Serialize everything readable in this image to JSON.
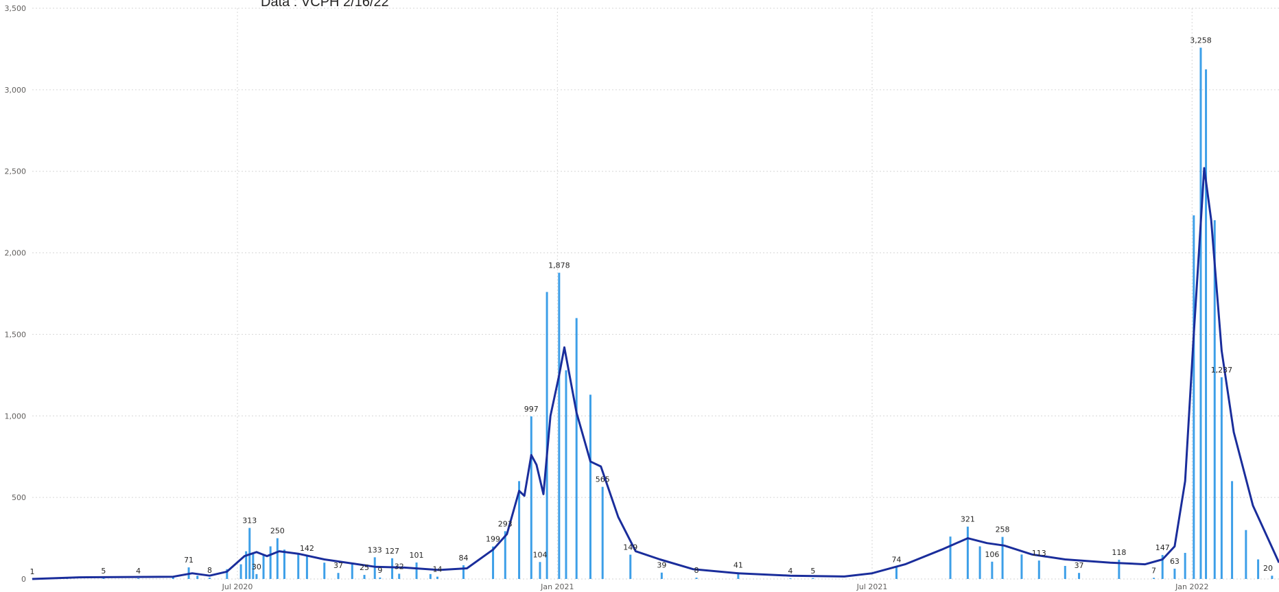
{
  "subtitle": "Data : VCPH 2/16/22",
  "colors": {
    "bars": "#3d9fe8",
    "line": "#1a2d9b",
    "grid": "#d6d6d6",
    "text": "#605e5c"
  },
  "chart_data": {
    "type": "bar",
    "title": "",
    "subtitle": "Data : VCPH 2/16/22",
    "xlabel": "",
    "ylabel": "",
    "ylim": [
      0,
      3500
    ],
    "grid": true,
    "legend": "none",
    "y_ticks": [
      0,
      500,
      1000,
      1500,
      2000,
      2500,
      3000,
      3500
    ],
    "y_tick_labels": [
      "0",
      "500",
      "1,000",
      "1,500",
      "2,000",
      "2,500",
      "3,000",
      "3,500"
    ],
    "x_range": [
      "2020-03-05",
      "2022-02-20"
    ],
    "x_ticks": [
      {
        "date": "2020-07-01",
        "label": "Jul 2020"
      },
      {
        "date": "2021-01-01",
        "label": "Jan 2021"
      },
      {
        "date": "2021-07-01",
        "label": "Jul 2021"
      },
      {
        "date": "2022-01-01",
        "label": "Jan 2022"
      }
    ],
    "series": [
      {
        "kind": "bar",
        "points": [
          [
            "2020-03-05",
            1
          ],
          [
            "2020-03-25",
            3
          ],
          [
            "2020-04-15",
            5
          ],
          [
            "2020-05-05",
            4
          ],
          [
            "2020-05-25",
            10
          ],
          [
            "2020-06-03",
            71
          ],
          [
            "2020-06-08",
            20
          ],
          [
            "2020-06-15",
            8
          ],
          [
            "2020-06-25",
            60
          ],
          [
            "2020-07-03",
            90
          ],
          [
            "2020-07-06",
            170
          ],
          [
            "2020-07-08",
            313
          ],
          [
            "2020-07-10",
            160
          ],
          [
            "2020-07-12",
            30
          ],
          [
            "2020-07-16",
            150
          ],
          [
            "2020-07-20",
            200
          ],
          [
            "2020-07-24",
            250
          ],
          [
            "2020-07-28",
            180
          ],
          [
            "2020-08-05",
            150
          ],
          [
            "2020-08-10",
            142
          ],
          [
            "2020-08-20",
            100
          ],
          [
            "2020-08-28",
            37
          ],
          [
            "2020-09-05",
            90
          ],
          [
            "2020-09-12",
            25
          ],
          [
            "2020-09-18",
            133
          ],
          [
            "2020-09-21",
            9
          ],
          [
            "2020-09-28",
            127
          ],
          [
            "2020-10-02",
            32
          ],
          [
            "2020-10-12",
            101
          ],
          [
            "2020-10-20",
            30
          ],
          [
            "2020-10-24",
            14
          ],
          [
            "2020-11-08",
            84
          ],
          [
            "2020-11-25",
            199
          ],
          [
            "2020-12-02",
            293
          ],
          [
            "2020-12-10",
            600
          ],
          [
            "2020-12-17",
            997
          ],
          [
            "2020-12-22",
            104
          ],
          [
            "2020-12-26",
            1760
          ],
          [
            "2021-01-02",
            1878
          ],
          [
            "2021-01-06",
            1280
          ],
          [
            "2021-01-12",
            1600
          ],
          [
            "2021-01-20",
            1130
          ],
          [
            "2021-01-27",
            565
          ],
          [
            "2021-02-12",
            149
          ],
          [
            "2021-03-02",
            39
          ],
          [
            "2021-03-22",
            8
          ],
          [
            "2021-04-15",
            41
          ],
          [
            "2021-05-15",
            4
          ],
          [
            "2021-05-28",
            5
          ],
          [
            "2021-07-15",
            74
          ],
          [
            "2021-08-15",
            260
          ],
          [
            "2021-08-25",
            321
          ],
          [
            "2021-09-01",
            200
          ],
          [
            "2021-09-08",
            106
          ],
          [
            "2021-09-14",
            258
          ],
          [
            "2021-09-25",
            150
          ],
          [
            "2021-10-05",
            113
          ],
          [
            "2021-10-20",
            80
          ],
          [
            "2021-10-28",
            37
          ],
          [
            "2021-11-20",
            118
          ],
          [
            "2021-12-10",
            7
          ],
          [
            "2021-12-15",
            147
          ],
          [
            "2021-12-22",
            63
          ],
          [
            "2021-12-28",
            160
          ],
          [
            "2022-01-02",
            2230
          ],
          [
            "2022-01-06",
            3258
          ],
          [
            "2022-01-09",
            3125
          ],
          [
            "2022-01-14",
            2200
          ],
          [
            "2022-01-18",
            1237
          ],
          [
            "2022-01-24",
            600
          ],
          [
            "2022-02-01",
            300
          ],
          [
            "2022-02-08",
            120
          ],
          [
            "2022-02-16",
            20
          ]
        ]
      },
      {
        "kind": "line",
        "points": [
          [
            "2020-03-05",
            0
          ],
          [
            "2020-04-01",
            10
          ],
          [
            "2020-05-01",
            12
          ],
          [
            "2020-05-25",
            14
          ],
          [
            "2020-06-05",
            35
          ],
          [
            "2020-06-15",
            20
          ],
          [
            "2020-06-25",
            45
          ],
          [
            "2020-07-05",
            140
          ],
          [
            "2020-07-12",
            165
          ],
          [
            "2020-07-18",
            140
          ],
          [
            "2020-07-25",
            170
          ],
          [
            "2020-08-05",
            155
          ],
          [
            "2020-08-20",
            120
          ],
          [
            "2020-09-05",
            95
          ],
          [
            "2020-09-18",
            75
          ],
          [
            "2020-10-05",
            70
          ],
          [
            "2020-10-25",
            55
          ],
          [
            "2020-11-10",
            65
          ],
          [
            "2020-11-25",
            180
          ],
          [
            "2020-12-03",
            275
          ],
          [
            "2020-12-10",
            540
          ],
          [
            "2020-12-13",
            510
          ],
          [
            "2020-12-17",
            760
          ],
          [
            "2020-12-20",
            700
          ],
          [
            "2020-12-24",
            520
          ],
          [
            "2020-12-28",
            1000
          ],
          [
            "2021-01-02",
            1250
          ],
          [
            "2021-01-05",
            1420
          ],
          [
            "2021-01-12",
            1020
          ],
          [
            "2021-01-20",
            720
          ],
          [
            "2021-01-26",
            690
          ],
          [
            "2021-02-05",
            380
          ],
          [
            "2021-02-15",
            170
          ],
          [
            "2021-03-01",
            120
          ],
          [
            "2021-03-20",
            60
          ],
          [
            "2021-04-15",
            35
          ],
          [
            "2021-05-15",
            20
          ],
          [
            "2021-06-15",
            15
          ],
          [
            "2021-07-01",
            35
          ],
          [
            "2021-07-20",
            90
          ],
          [
            "2021-08-10",
            180
          ],
          [
            "2021-08-25",
            250
          ],
          [
            "2021-09-05",
            220
          ],
          [
            "2021-09-15",
            205
          ],
          [
            "2021-10-01",
            150
          ],
          [
            "2021-10-20",
            120
          ],
          [
            "2021-11-15",
            100
          ],
          [
            "2021-12-05",
            90
          ],
          [
            "2021-12-15",
            120
          ],
          [
            "2021-12-22",
            200
          ],
          [
            "2021-12-28",
            600
          ],
          [
            "2022-01-02",
            1500
          ],
          [
            "2022-01-08",
            2520
          ],
          [
            "2022-01-12",
            2200
          ],
          [
            "2022-01-18",
            1400
          ],
          [
            "2022-01-25",
            900
          ],
          [
            "2022-02-05",
            450
          ],
          [
            "2022-02-20",
            100
          ]
        ]
      }
    ],
    "data_labels": [
      {
        "date": "2020-03-05",
        "value": 1,
        "text": "1"
      },
      {
        "date": "2020-04-15",
        "value": 5,
        "text": "5"
      },
      {
        "date": "2020-05-05",
        "value": 4,
        "text": "4"
      },
      {
        "date": "2020-06-03",
        "value": 71,
        "text": "71"
      },
      {
        "date": "2020-06-15",
        "value": 8,
        "text": "8"
      },
      {
        "date": "2020-07-08",
        "value": 313,
        "text": "313"
      },
      {
        "date": "2020-07-12",
        "value": 30,
        "text": "30"
      },
      {
        "date": "2020-07-24",
        "value": 250,
        "text": "250"
      },
      {
        "date": "2020-08-10",
        "value": 142,
        "text": "142"
      },
      {
        "date": "2020-08-28",
        "value": 37,
        "text": "37"
      },
      {
        "date": "2020-09-12",
        "value": 25,
        "text": "25"
      },
      {
        "date": "2020-09-18",
        "value": 133,
        "text": "133"
      },
      {
        "date": "2020-09-21",
        "value": 9,
        "text": "9"
      },
      {
        "date": "2020-09-28",
        "value": 127,
        "text": "127"
      },
      {
        "date": "2020-10-02",
        "value": 32,
        "text": "32"
      },
      {
        "date": "2020-10-12",
        "value": 101,
        "text": "101"
      },
      {
        "date": "2020-10-24",
        "value": 14,
        "text": "14"
      },
      {
        "date": "2020-11-08",
        "value": 84,
        "text": "84"
      },
      {
        "date": "2020-11-25",
        "value": 199,
        "text": "199"
      },
      {
        "date": "2020-12-02",
        "value": 293,
        "text": "293"
      },
      {
        "date": "2020-12-17",
        "value": 997,
        "text": "997"
      },
      {
        "date": "2020-12-22",
        "value": 104,
        "text": "104"
      },
      {
        "date": "2021-01-02",
        "value": 1878,
        "text": "1,878"
      },
      {
        "date": "2021-01-27",
        "value": 565,
        "text": "565"
      },
      {
        "date": "2021-02-12",
        "value": 149,
        "text": "149"
      },
      {
        "date": "2021-03-02",
        "value": 39,
        "text": "39"
      },
      {
        "date": "2021-03-22",
        "value": 8,
        "text": "8"
      },
      {
        "date": "2021-04-15",
        "value": 41,
        "text": "41"
      },
      {
        "date": "2021-05-15",
        "value": 4,
        "text": "4"
      },
      {
        "date": "2021-05-28",
        "value": 5,
        "text": "5"
      },
      {
        "date": "2021-07-15",
        "value": 74,
        "text": "74"
      },
      {
        "date": "2021-08-25",
        "value": 321,
        "text": "321"
      },
      {
        "date": "2021-09-08",
        "value": 106,
        "text": "106"
      },
      {
        "date": "2021-09-14",
        "value": 258,
        "text": "258"
      },
      {
        "date": "2021-10-05",
        "value": 113,
        "text": "113"
      },
      {
        "date": "2021-10-28",
        "value": 37,
        "text": "37"
      },
      {
        "date": "2021-11-20",
        "value": 118,
        "text": "118"
      },
      {
        "date": "2021-12-10",
        "value": 7,
        "text": "7"
      },
      {
        "date": "2021-12-15",
        "value": 147,
        "text": "147"
      },
      {
        "date": "2021-12-22",
        "value": 63,
        "text": "63"
      },
      {
        "date": "2022-01-06",
        "value": 3258,
        "text": "3,258"
      },
      {
        "date": "2022-01-18",
        "value": 1237,
        "text": "1,237"
      },
      {
        "date": "2022-02-16",
        "value": 20,
        "text": "20"
      }
    ]
  }
}
